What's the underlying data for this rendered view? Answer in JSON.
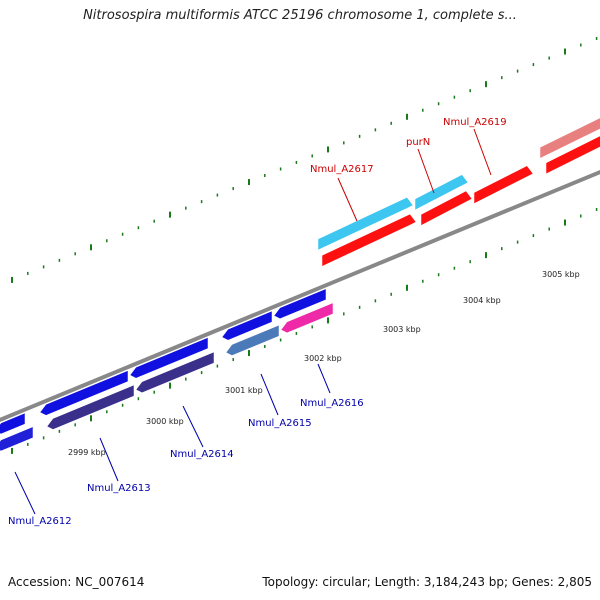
{
  "title": "Nitrosospira multiformis ATCC 25196 chromosome 1, complete s...",
  "footer": {
    "accession": "Accession: NC_007614",
    "stats": "Topology: circular; Length: 3,184,243 bp; Genes: 2,805"
  },
  "colors": {
    "backbone": "#888888",
    "tick": "#1a7a1a",
    "label_forward": "#cc0000",
    "label_reverse": "#0000aa"
  },
  "scale_labels": [
    "2999 kbp",
    "3000 kbp",
    "3001 kbp",
    "3002 kbp",
    "3003 kbp",
    "3004 kbp",
    "3005 kbp"
  ],
  "genes": [
    {
      "name": "Nmul_A2612",
      "strand": "reverse"
    },
    {
      "name": "Nmul_A2613",
      "strand": "reverse"
    },
    {
      "name": "Nmul_A2614",
      "strand": "reverse"
    },
    {
      "name": "Nmul_A2615",
      "strand": "reverse"
    },
    {
      "name": "Nmul_A2616",
      "strand": "reverse"
    },
    {
      "name": "Nmul_A2617",
      "strand": "forward"
    },
    {
      "name": "purN",
      "strand": "forward"
    },
    {
      "name": "Nmul_A2619",
      "strand": "forward"
    }
  ]
}
